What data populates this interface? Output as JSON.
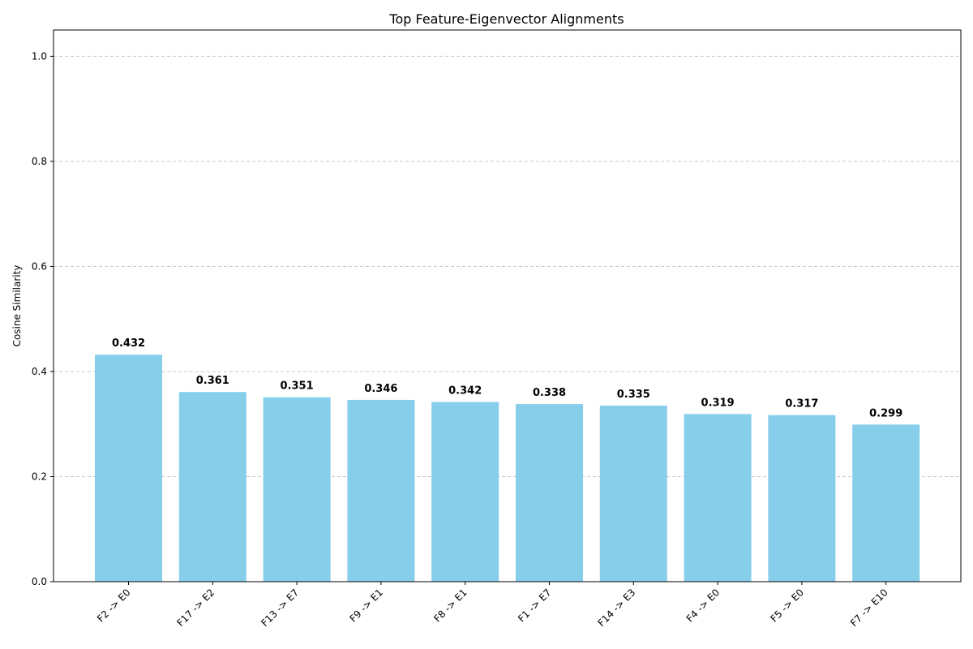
{
  "chart_data": {
    "type": "bar",
    "title": "Top Feature-Eigenvector Alignments",
    "xlabel": "",
    "ylabel": "Cosine Similarity",
    "categories": [
      "F2 -> E0",
      "F17 -> E2",
      "F13 -> E7",
      "F9 -> E1",
      "F8 -> E1",
      "F1 -> E7",
      "F14 -> E3",
      "F4 -> E0",
      "F5 -> E0",
      "F7 -> E10"
    ],
    "values": [
      0.432,
      0.361,
      0.351,
      0.346,
      0.342,
      0.338,
      0.335,
      0.319,
      0.317,
      0.299
    ],
    "data_labels": [
      "0.432",
      "0.361",
      "0.351",
      "0.346",
      "0.342",
      "0.338",
      "0.335",
      "0.319",
      "0.317",
      "0.299"
    ],
    "ylim": [
      0,
      1.05
    ],
    "yticks": [
      0.0,
      0.2,
      0.4,
      0.6,
      0.8,
      1.0
    ],
    "ytick_labels": [
      "0.0",
      "0.2",
      "0.4",
      "0.6",
      "0.8",
      "1.0"
    ],
    "grid": "y-dashed",
    "bar_color": "#87CEEB",
    "grid_color": "#c8c8c8"
  }
}
